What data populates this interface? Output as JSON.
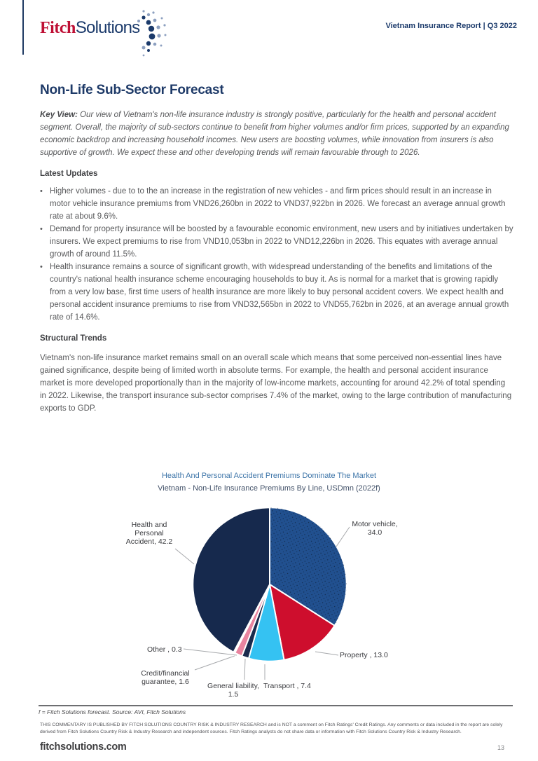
{
  "header": {
    "logo_fitch": "Fitch",
    "logo_solutions": "Solutions",
    "report_title": "Vietnam Insurance Report | Q3 2022"
  },
  "page": {
    "title": "Non-Life Sub-Sector Forecast",
    "key_view_label": "Key View:",
    "key_view_text": " Our view of Vietnam's non-life insurance industry is strongly positive, particularly for the health and personal accident segment. Overall, the majority of sub-sectors continue to benefit from higher volumes and/or firm prices, supported by an expanding economic backdrop and increasing household incomes. New users are boosting volumes, while innovation from insurers is also supportive of growth. We expect these and other developing trends will remain favourable through to 2026."
  },
  "latest_updates": {
    "heading": "Latest Updates",
    "bullets": [
      "Higher volumes - due to to the an increase in the registration of new vehicles - and firm prices should result in an increase in motor vehicle insurance premiums from VND26,260bn in 2022 to VND37,922bn in 2026. We forecast an average annual growth rate at about 9.6%.",
      "Demand for property insurance will be boosted by a favourable economic environment, new users and by initiatives undertaken by insurers. We expect premiums to rise from VND10,053bn in 2022 to VND12,226bn in 2026. This equates with average annual growth of around 11.5%.",
      "Health insurance remains a source of significant growth, with widespread understanding of the benefits and limitations of the country's national health insurance scheme encouraging households to buy it. As is normal for a market that is growing rapidly from a very low base, first time users of health insurance are more likely to buy personal accident covers. We expect health and personal accident insurance premiums to rise from VND32,565bn in 2022 to VND55,762bn in 2026, at an average annual growth rate of 14.6%."
    ]
  },
  "structural_trends": {
    "heading": "Structural Trends",
    "paragraph": "Vietnam's non-life insurance market remains small on an overall scale which means that some perceived non-essential lines have gained significance, despite being of limited worth in absolute terms. For example, the health and personal accident insurance market is more developed proportionally than in the majority of low-income markets, accounting for around 42.2% of total spending in 2022. Likewise, the transport insurance sub-sector comprises 7.4% of the market, owing to the large contribution of manufacturing exports to GDP."
  },
  "chart_data": {
    "type": "pie",
    "title": "Health And Personal Accident Premiums Dominate The Market",
    "subtitle": "Vietnam - Non-Life Insurance Premiums By Line, USDmn (2022f)",
    "start_angle_deg": -90,
    "direction": "clockwise",
    "slices": [
      {
        "name": "Motor vehicle",
        "value": 34.0,
        "color": "#21508F",
        "textured": true,
        "label_lines": [
          "Motor vehicle,",
          "34.0"
        ]
      },
      {
        "name": "Property",
        "value": 13.0,
        "color": "#CE0E2D",
        "textured": false,
        "label_lines": [
          "Property , 13.0"
        ]
      },
      {
        "name": "Transport",
        "value": 7.4,
        "color": "#35C2F2",
        "textured": false,
        "label_lines": [
          "Transport , 7.4"
        ]
      },
      {
        "name": "General liability",
        "value": 1.5,
        "color": "#1A2B4D",
        "textured": false,
        "label_lines": [
          "General liability,",
          "1.5"
        ]
      },
      {
        "name": "Credit/financial guarantee",
        "value": 1.6,
        "color": "#E8849F",
        "textured": false,
        "label_lines": [
          "Credit/financial",
          "guarantee, 1.6"
        ]
      },
      {
        "name": "Other",
        "value": 0.3,
        "color": "#FFFFFF",
        "textured": false,
        "label_lines": [
          "Other , 0.3"
        ]
      },
      {
        "name": "Health and Personal Accident",
        "value": 42.2,
        "color": "#16294D",
        "textured": false,
        "label_lines": [
          "Health and",
          "Personal",
          "Accident, 42.2"
        ]
      }
    ]
  },
  "footnote": "f = Fitch Solutions forecast. Source: AVI, Fitch Solutions",
  "disclaimer": {
    "line1": "THIS COMMENTARY IS PUBLISHED BY FITCH SOLUTIONS COUNTRY RISK & INDUSTRY RESEARCH and is NOT a comment on Fitch Ratings' Credit Ratings. Any comments or data included in the report are solely",
    "line2": "derived from Fitch Solutions Country Risk & Industry Research and independent sources. Fitch Ratings analysts do not share data or information with Fitch Solutions Country Risk & Industry Research."
  },
  "footer": {
    "site": "fitchsolutions.com",
    "page_number": "13"
  }
}
